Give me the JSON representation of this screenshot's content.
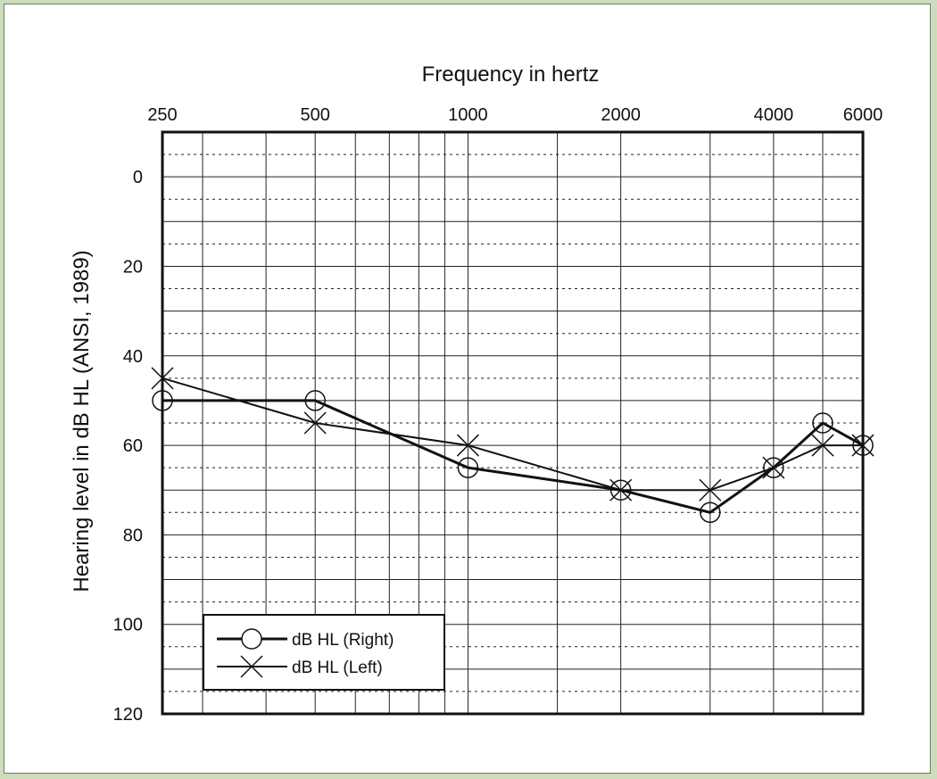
{
  "chart_data": {
    "type": "line",
    "title": "",
    "xlabel": "Frequency in hertz",
    "ylabel": "Hearing level in dB HL (ANSI, 1989)",
    "x_scale": "log",
    "x_tick_labels": [
      "250",
      "500",
      "1000",
      "2000",
      "4000",
      "6000"
    ],
    "x_tick_values": [
      250,
      500,
      1000,
      2000,
      4000,
      6000
    ],
    "ylim": [
      -10,
      120
    ],
    "y_inverted": true,
    "y_ticks": [
      0,
      20,
      40,
      60,
      80,
      100,
      120
    ],
    "x": [
      250,
      500,
      1000,
      2000,
      3000,
      4000,
      5000,
      6000
    ],
    "series": [
      {
        "name": "dB HL (Right)",
        "marker": "circle",
        "values": [
          50,
          50,
          65,
          70,
          75,
          65,
          55,
          60
        ]
      },
      {
        "name": "dB HL (Left)",
        "marker": "x",
        "values": [
          45,
          55,
          60,
          70,
          70,
          65,
          60,
          60
        ]
      }
    ],
    "grid": true,
    "legend": "bottom-left"
  },
  "colors": {
    "background": "#cddcbd",
    "panel": "#ffffff",
    "ink": "#111111"
  }
}
